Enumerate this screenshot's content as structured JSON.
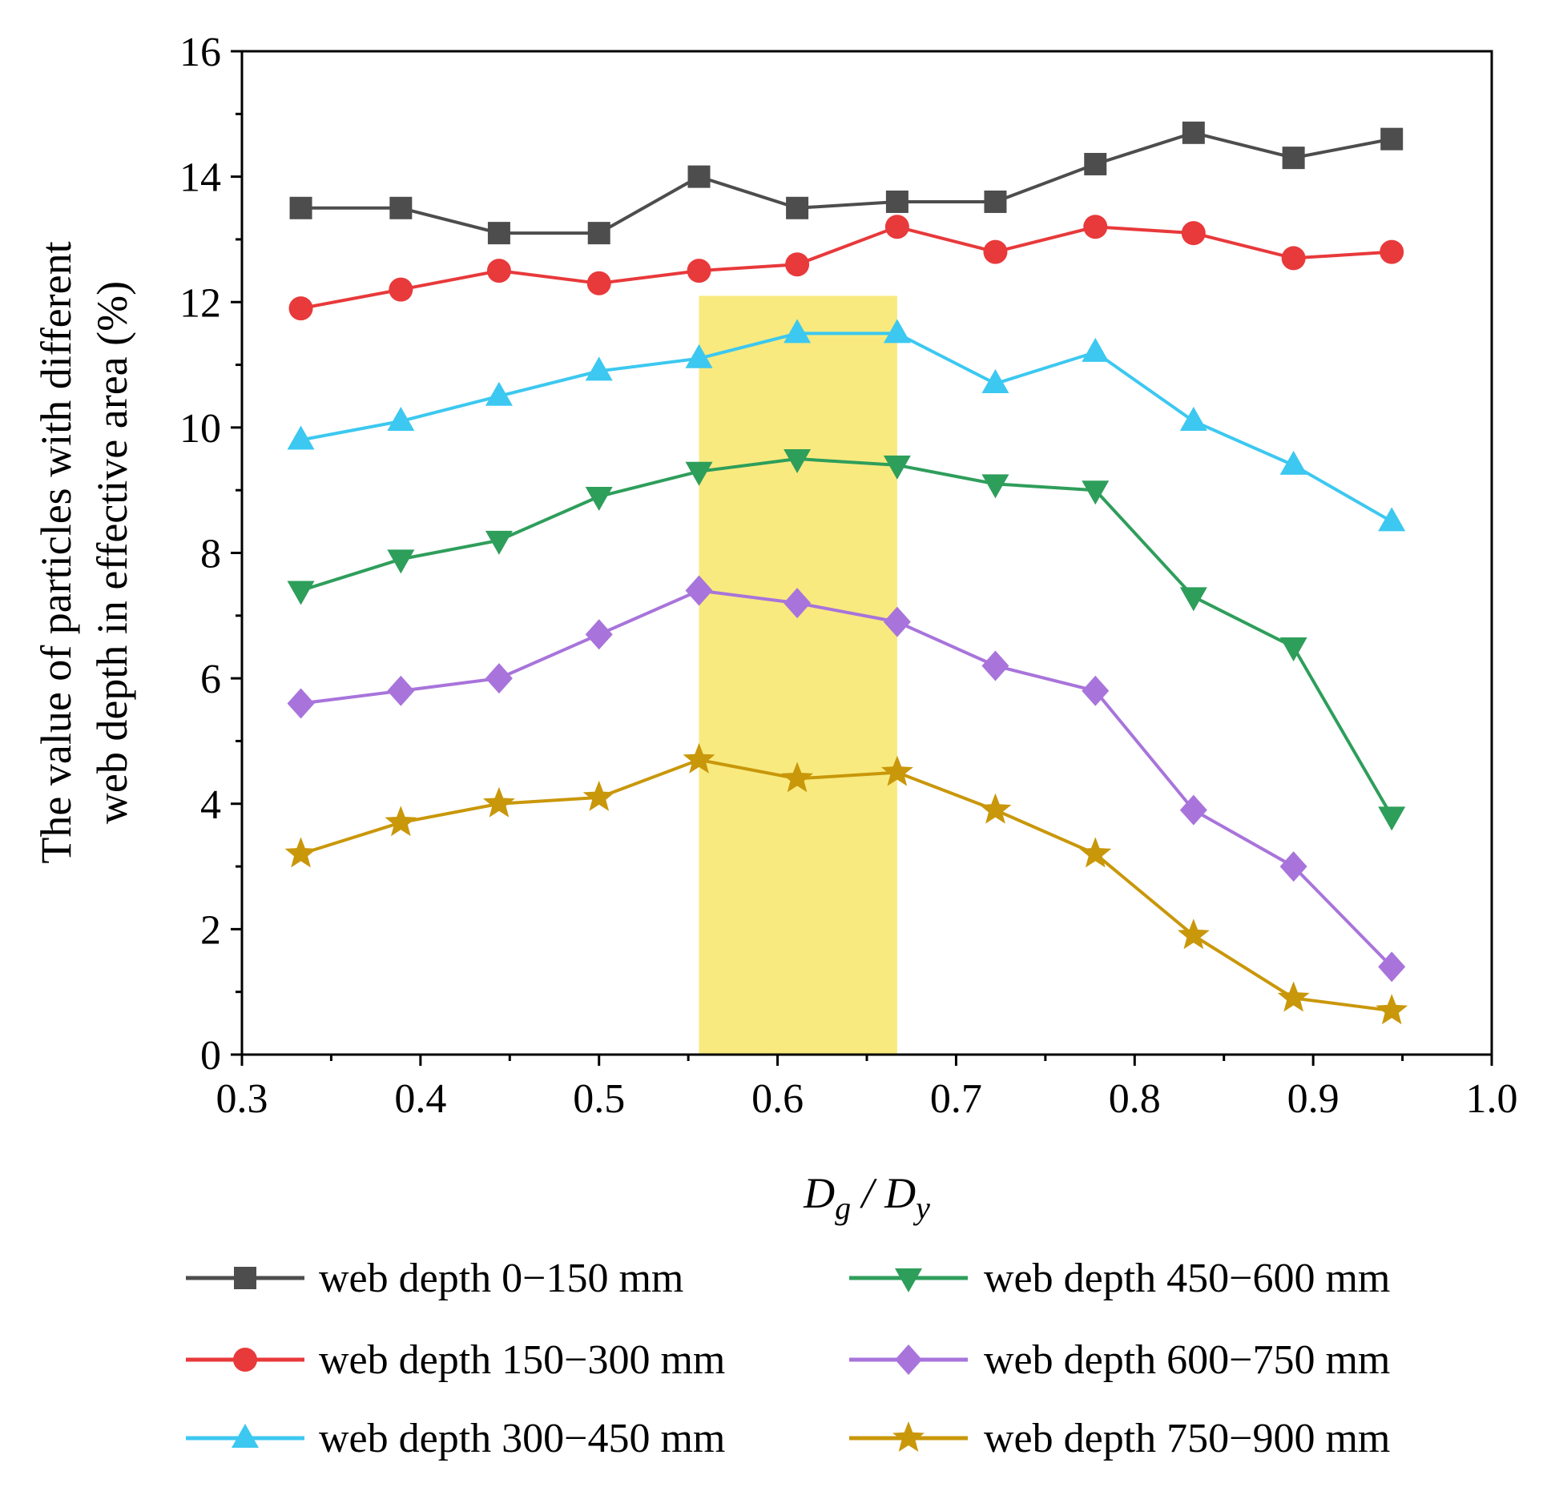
{
  "chart_data": {
    "type": "line",
    "ylabel_lines": [
      "The value of particles with different",
      "web depth in effective area (%)"
    ],
    "xlabel": {
      "main1": "D",
      "sub1": "g",
      "sep": " / ",
      "main2": "D",
      "sub2": "y"
    },
    "xlim": [
      0.3,
      1.0
    ],
    "ylim": [
      0,
      16
    ],
    "xticks": [
      "0.3",
      "0.4",
      "0.5",
      "0.6",
      "0.7",
      "0.8",
      "0.9",
      "1.0"
    ],
    "yticks": [
      "0",
      "2",
      "4",
      "6",
      "8",
      "10",
      "12",
      "14",
      "16"
    ],
    "highlight_region": {
      "x0": 0.556,
      "x1": 0.667,
      "y0": 0,
      "y1": 12.1,
      "color": "#F8EA7F"
    },
    "x": [
      0.333,
      0.389,
      0.444,
      0.5,
      0.556,
      0.611,
      0.667,
      0.722,
      0.778,
      0.833,
      0.889,
      0.944
    ],
    "series": [
      {
        "name": "web depth 0−150 mm",
        "color": "#4D4D4D",
        "marker": "square",
        "values": [
          13.5,
          13.5,
          13.1,
          13.1,
          14.0,
          13.5,
          13.6,
          13.6,
          14.2,
          14.7,
          14.3,
          14.6
        ]
      },
      {
        "name": "web depth 150−300 mm",
        "color": "#E8393B",
        "marker": "circle",
        "values": [
          11.9,
          12.2,
          12.5,
          12.3,
          12.5,
          12.6,
          13.2,
          12.8,
          13.2,
          13.1,
          12.7,
          12.8
        ]
      },
      {
        "name": "web depth 300−450 mm",
        "color": "#3CC8F0",
        "marker": "triangle-up",
        "values": [
          9.8,
          10.1,
          10.5,
          10.9,
          11.1,
          11.5,
          11.5,
          10.7,
          11.2,
          10.1,
          9.4,
          8.5
        ]
      },
      {
        "name": "web depth 450−600 mm",
        "color": "#2E9E5B",
        "marker": "triangle-down",
        "values": [
          7.4,
          7.9,
          8.2,
          8.9,
          9.3,
          9.5,
          9.4,
          9.1,
          9.0,
          7.3,
          6.5,
          3.8
        ]
      },
      {
        "name": "web depth 600−750 mm",
        "color": "#A874DB",
        "marker": "diamond",
        "values": [
          5.6,
          5.8,
          6.0,
          6.7,
          7.4,
          7.2,
          6.9,
          6.2,
          5.8,
          3.9,
          3.0,
          1.4
        ]
      },
      {
        "name": "web depth 750−900 mm",
        "color": "#C9970A",
        "marker": "star",
        "values": [
          3.2,
          3.7,
          4.0,
          4.1,
          4.7,
          4.4,
          4.5,
          3.9,
          3.2,
          1.9,
          0.9,
          0.7
        ]
      }
    ]
  }
}
